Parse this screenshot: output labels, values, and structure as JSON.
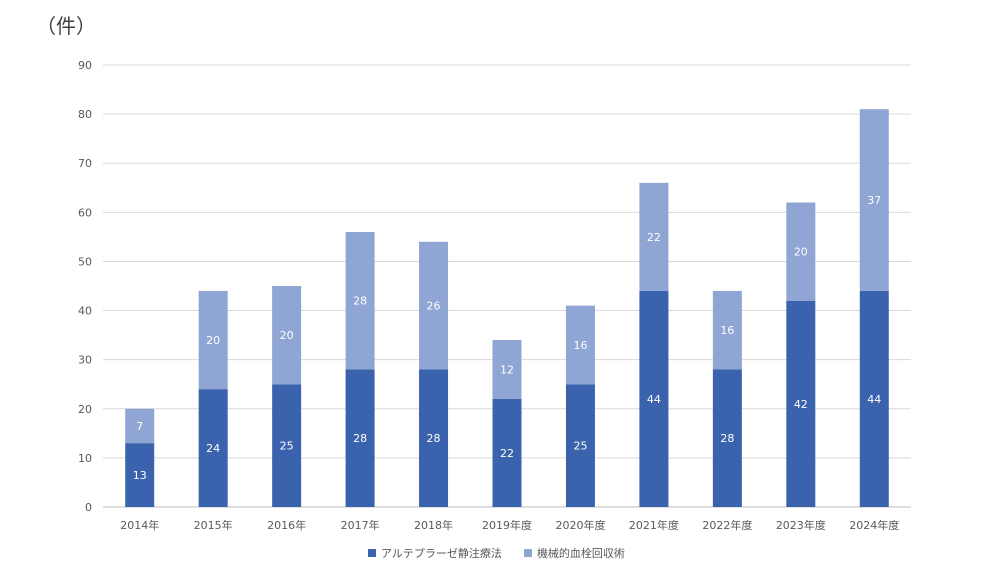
{
  "unit_label": "（件）",
  "colors": {
    "primary": "#3B63AD",
    "secondary": "#8FA5D3",
    "grid": "#D9D9D9",
    "axis_text": "#595959"
  },
  "chart_data": {
    "type": "bar",
    "stacked": true,
    "categories": [
      "2014年",
      "2015年",
      "2016年",
      "2017年",
      "2018年",
      "2019年度",
      "2020年度",
      "2021年度",
      "2022年度",
      "2023年度",
      "2024年度"
    ],
    "series": [
      {
        "name": "アルテプラーゼ静注療法",
        "values": [
          13,
          24,
          25,
          28,
          28,
          22,
          25,
          44,
          28,
          42,
          44
        ]
      },
      {
        "name": "機械的血栓回収術",
        "values": [
          7,
          20,
          20,
          28,
          26,
          12,
          16,
          22,
          16,
          20,
          37
        ]
      }
    ],
    "ylim": [
      0,
      90
    ],
    "yticks": [
      0,
      10,
      20,
      30,
      40,
      50,
      60,
      70,
      80,
      90
    ],
    "grid": true,
    "legend": "bottom"
  }
}
